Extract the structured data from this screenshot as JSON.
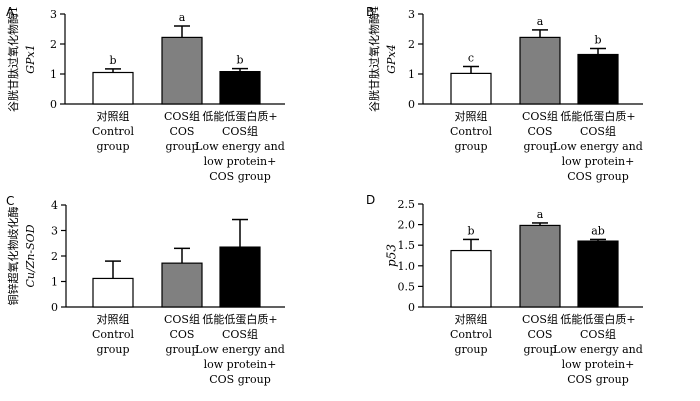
{
  "chart_data": [
    {
      "type": "bar",
      "panel": "A",
      "ylabel": "谷胱甘肽过氧化物酶1",
      "ylabel_italic": "GPx1",
      "ylim": [
        0,
        3
      ],
      "yticks": [
        "0",
        "1",
        "2",
        "3"
      ],
      "categories": [
        {
          "lines": [
            "对照组",
            "Control",
            "group"
          ]
        },
        {
          "lines": [
            "COS组",
            "COS",
            "group"
          ]
        },
        {
          "lines": [
            "低能低蛋白质+",
            "COS组",
            "Low energy and",
            "low protein+",
            "COS group"
          ]
        }
      ],
      "values": [
        1.05,
        2.22,
        1.08
      ],
      "errors": [
        0.12,
        0.38,
        0.1
      ],
      "letters": [
        "b",
        "a",
        "b"
      ]
    },
    {
      "type": "bar",
      "panel": "B",
      "ylabel": "谷胱甘肽过氧化物酶4",
      "ylabel_italic": "GPx4",
      "ylim": [
        0,
        3
      ],
      "yticks": [
        "0",
        "1",
        "2",
        "3"
      ],
      "categories": [
        {
          "lines": [
            "对照组",
            "Control",
            "group"
          ]
        },
        {
          "lines": [
            "COS组",
            "COS",
            "group"
          ]
        },
        {
          "lines": [
            "低能低蛋白质+",
            "COS组",
            "Low energy and",
            "low protein+",
            "COS group"
          ]
        }
      ],
      "values": [
        1.02,
        2.22,
        1.65
      ],
      "errors": [
        0.23,
        0.25,
        0.2
      ],
      "letters": [
        "c",
        "a",
        "b"
      ]
    },
    {
      "type": "bar",
      "panel": "C",
      "ylabel": "铜锌超氧化物歧化酶",
      "ylabel_italic": "Cu/Zn-SOD",
      "ylim": [
        0,
        4
      ],
      "yticks": [
        "0",
        "1",
        "2",
        "3",
        "4"
      ],
      "categories": [
        {
          "lines": [
            "对照组",
            "Control",
            "group"
          ]
        },
        {
          "lines": [
            "COS组",
            "COS",
            "group"
          ]
        },
        {
          "lines": [
            "低能低蛋白质+",
            "COS组",
            "Low energy and",
            "low protein+",
            "COS group"
          ]
        }
      ],
      "values": [
        1.12,
        1.72,
        2.35
      ],
      "errors": [
        0.68,
        0.58,
        1.08
      ],
      "letters": [
        "",
        "",
        ""
      ]
    },
    {
      "type": "bar",
      "panel": "D",
      "ylabel": "",
      "ylabel_italic": "p53",
      "ylim": [
        0,
        2.5
      ],
      "yticks": [
        "0",
        "0.5",
        "1.0",
        "1.5",
        "2.0",
        "2.5"
      ],
      "categories": [
        {
          "lines": [
            "对照组",
            "Control",
            "group"
          ]
        },
        {
          "lines": [
            "COS组",
            "COS",
            "group"
          ]
        },
        {
          "lines": [
            "低能低蛋白质+",
            "COS组",
            "Low energy and",
            "low protein+",
            "COS group"
          ]
        }
      ],
      "values": [
        1.37,
        1.98,
        1.6
      ],
      "errors": [
        0.27,
        0.06,
        0.04
      ],
      "letters": [
        "b",
        "a",
        "ab"
      ]
    }
  ],
  "colors": {
    "bar_fills": [
      "#ffffff",
      "#808080",
      "#000000"
    ],
    "axis": "#000000"
  }
}
